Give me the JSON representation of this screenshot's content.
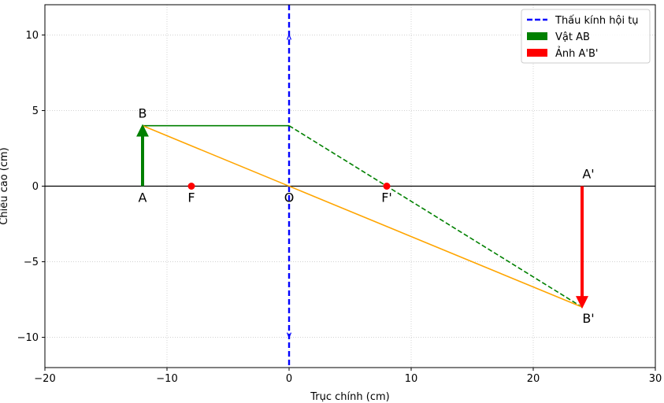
{
  "chart_data": {
    "type": "line",
    "title": "",
    "xlabel": "Trục chính (cm)",
    "ylabel": "Chiều cao (cm)",
    "xlim": [
      -20,
      30
    ],
    "ylim": [
      -12,
      12
    ],
    "xticks": [
      -20,
      -10,
      0,
      10,
      20,
      30
    ],
    "yticks": [
      -10,
      -5,
      0,
      5,
      10
    ],
    "xtick_labels": [
      "−20",
      "−10",
      "0",
      "10",
      "20",
      "30"
    ],
    "ytick_labels": [
      "−10",
      "−5",
      "0",
      "5",
      "10"
    ],
    "grid": true,
    "legend_position": "top-right",
    "legend": [
      {
        "label": "Thấu kính hội tụ",
        "color": "#0000ff",
        "style": "dashed-line"
      },
      {
        "label": "Vật AB",
        "color": "#008000",
        "style": "patch"
      },
      {
        "label": "Ảnh A'B'",
        "color": "#ff0000",
        "style": "patch"
      }
    ],
    "principal_axis": {
      "y": 0,
      "color": "#000000"
    },
    "lens": {
      "x": 0,
      "y_range": [
        -10,
        10
      ],
      "color": "#0000ff"
    },
    "object": {
      "name": "AB",
      "x": -12,
      "y_from": 0,
      "y_to": 4,
      "color": "#008000"
    },
    "image": {
      "name": "A'B'",
      "x": 24,
      "y_from": 0,
      "y_to": -8,
      "color": "#ff0000"
    },
    "focal_points": [
      {
        "label": "F",
        "x": -8,
        "y": 0,
        "color": "#ff0000"
      },
      {
        "label": "F'",
        "x": 8,
        "y": 0,
        "color": "#ff0000"
      }
    ],
    "rays": [
      {
        "name": "parallel-ray",
        "points": [
          [
            -12,
            4
          ],
          [
            0,
            4
          ]
        ],
        "color": "#008000",
        "dashed": false
      },
      {
        "name": "refracted-ray",
        "points": [
          [
            0,
            4
          ],
          [
            24,
            -8
          ]
        ],
        "color": "#008000",
        "dashed": true
      },
      {
        "name": "central-ray",
        "points": [
          [
            -12,
            4
          ],
          [
            24,
            -8
          ]
        ],
        "color": "#ffa500",
        "dashed": false
      }
    ],
    "point_labels": [
      {
        "text": "A",
        "x": -12,
        "y": 0
      },
      {
        "text": "B",
        "x": -12,
        "y": 4
      },
      {
        "text": "F",
        "x": -8,
        "y": 0
      },
      {
        "text": "O",
        "x": 0,
        "y": 0
      },
      {
        "text": "F'",
        "x": 8,
        "y": 0
      },
      {
        "text": "A'",
        "x": 24,
        "y": 0
      },
      {
        "text": "B'",
        "x": 24,
        "y": -8
      }
    ]
  }
}
